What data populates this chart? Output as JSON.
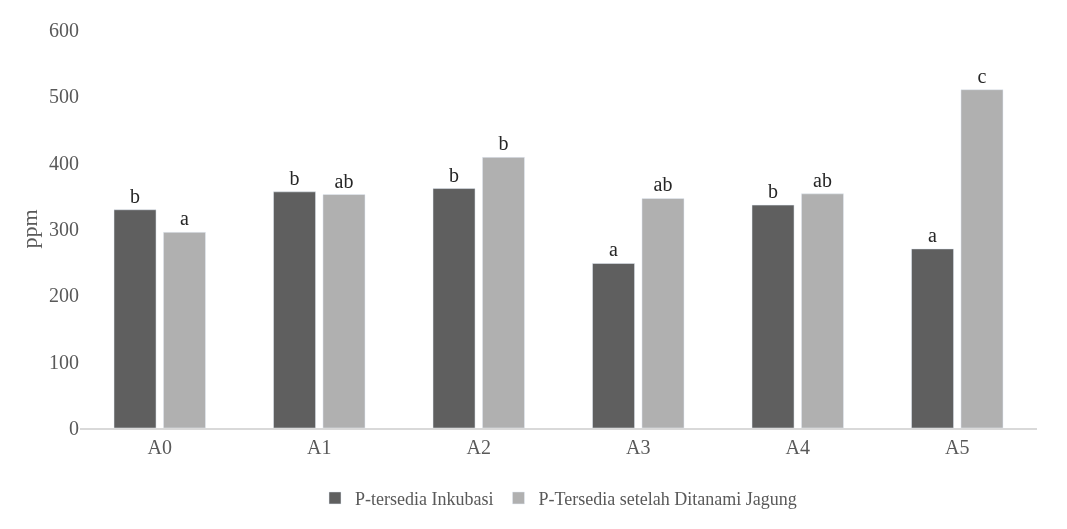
{
  "chart_data": {
    "type": "bar",
    "ylabel": "ppm",
    "categories": [
      "A0",
      "A1",
      "A2",
      "A3",
      "A4",
      "A5"
    ],
    "series": [
      {
        "name": "P-tersedia Inkubasi",
        "color": "#5f5f5f",
        "values": [
          329,
          356,
          361,
          248,
          336,
          270
        ],
        "value_labels": [
          "b",
          "b",
          "b",
          "a",
          "b",
          "a"
        ]
      },
      {
        "name": "P-Tersedia setelah Ditanami Jagung",
        "color": "#b0b0b0",
        "values": [
          295,
          352,
          408,
          346,
          353,
          510
        ],
        "value_labels": [
          "a",
          "ab",
          "b",
          "ab",
          "ab",
          "c"
        ]
      }
    ],
    "ylim": [
      0,
      600
    ],
    "yticks": [
      0,
      100,
      200,
      300,
      400,
      500,
      600
    ],
    "legend": "bottom"
  }
}
